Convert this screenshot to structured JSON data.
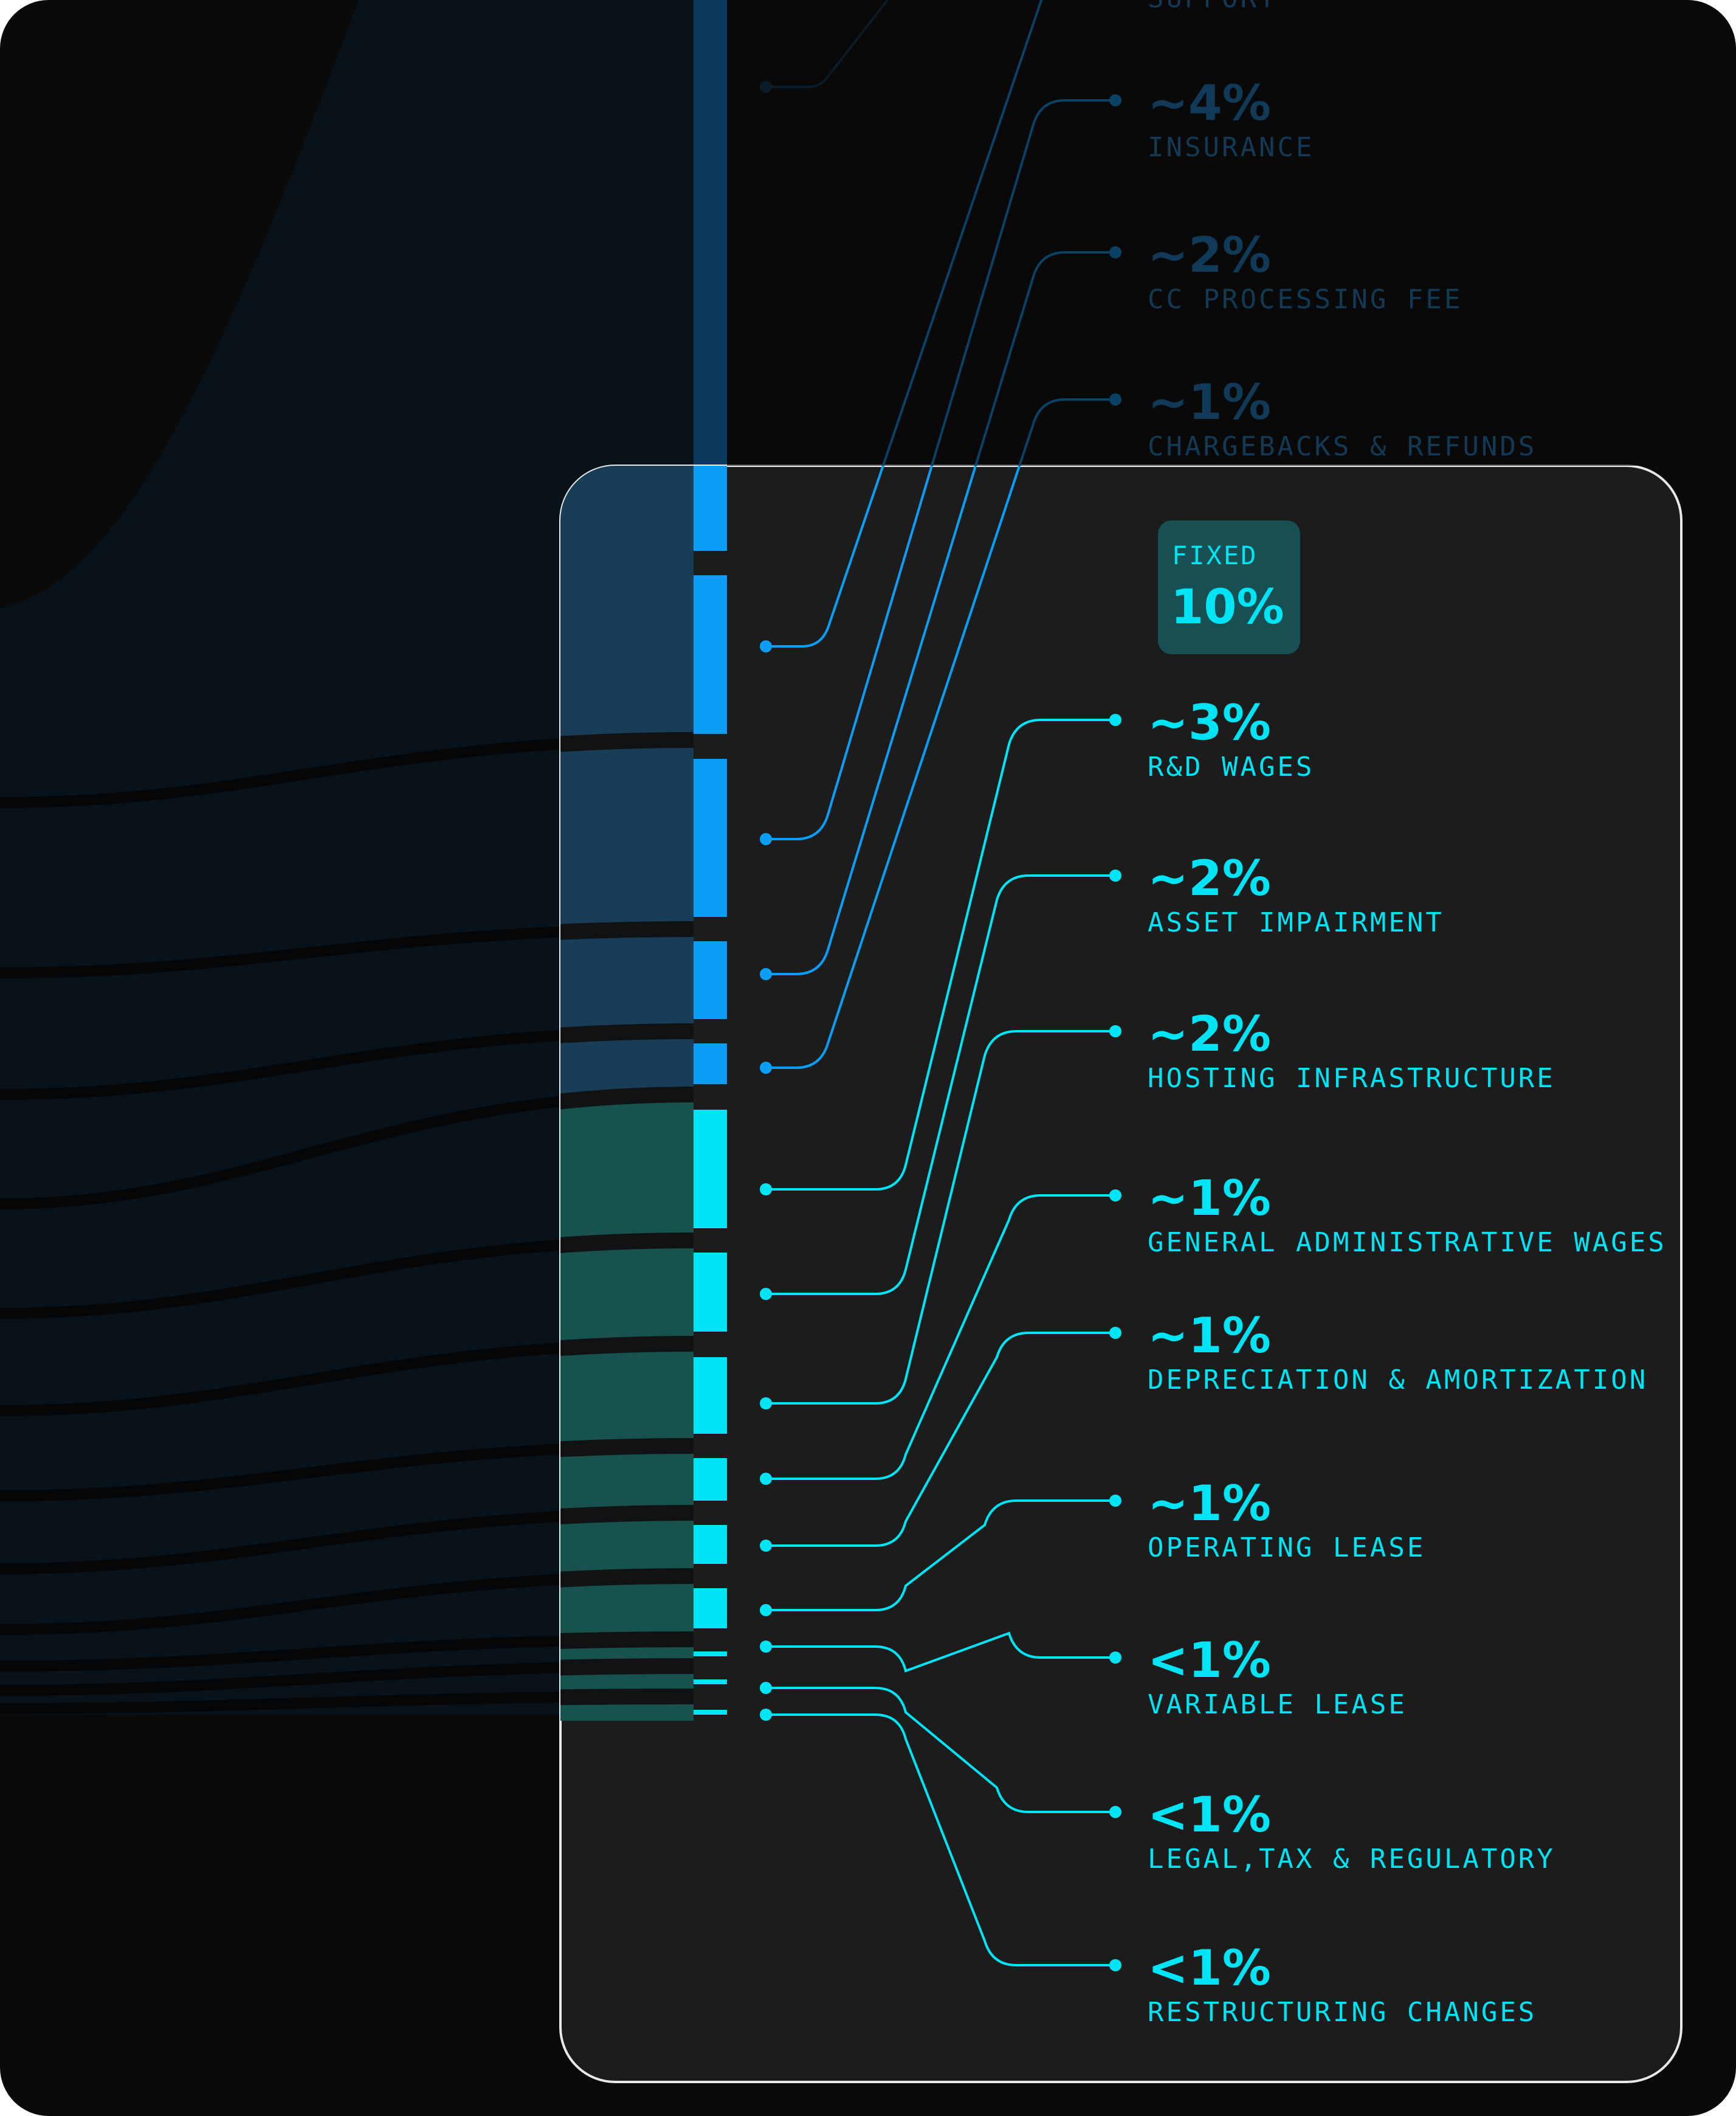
{
  "chart_data": {
    "type": "sankey",
    "top_partial_label": "SUPPORT",
    "colors": {
      "variable": "#0a9ef7",
      "variable_dim": "#0b3a5c",
      "fixed": "#00e5f5",
      "panel_bg": "#1c1c1c",
      "badge_bg": "#174f52",
      "panel_border": "#e8e8e8"
    },
    "group_badge": {
      "label": "FIXED",
      "value": "10%"
    },
    "variable_items": [
      {
        "value": "~4%",
        "label": "INSURANCE"
      },
      {
        "value": "~2%",
        "label": "CC PROCESSING FEE"
      },
      {
        "value": "~1%",
        "label": "CHARGEBACKS & REFUNDS"
      }
    ],
    "fixed_items": [
      {
        "value": "~3%",
        "label": "R&D WAGES"
      },
      {
        "value": "~2%",
        "label": "ASSET IMPAIRMENT"
      },
      {
        "value": "~2%",
        "label": "HOSTING INFRASTRUCTURE"
      },
      {
        "value": "~1%",
        "label": "GENERAL ADMINISTRATIVE WAGES"
      },
      {
        "value": "~1%",
        "label": "DEPRECIATION & AMORTIZATION"
      },
      {
        "value": "~1%",
        "label": "OPERATING LEASE"
      },
      {
        "value": "<1%",
        "label": "VARIABLE LEASE"
      },
      {
        "value": "<1%",
        "label": "LEGAL,TAX & REGULATORY"
      },
      {
        "value": "<1%",
        "label": "RESTRUCTURING CHANGES"
      }
    ]
  }
}
